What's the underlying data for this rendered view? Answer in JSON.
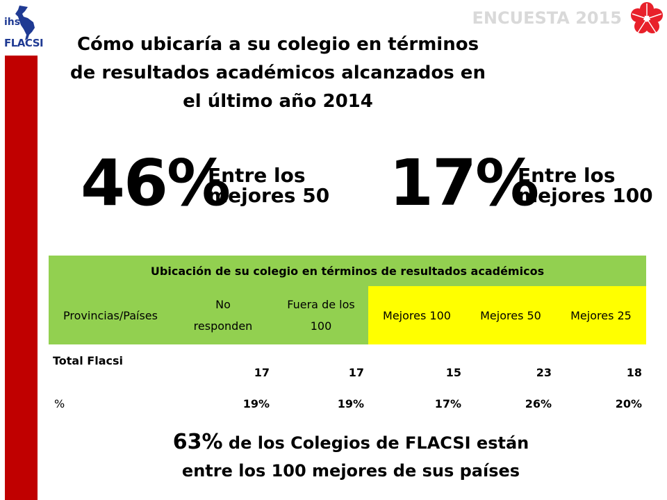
{
  "header": {
    "survey_label": "ENCUESTA 2015",
    "logo_top": "ihs",
    "logo_bottom": "FLACSI"
  },
  "title": {
    "line1": "Cómo ubicaría a su colegio en términos",
    "line2": "de resultados académicos alcanzados en",
    "line3": "el último año 2014"
  },
  "highlights": [
    {
      "value": "46%",
      "label_line1": "Entre los",
      "label_line2": "mejores 50"
    },
    {
      "value": "17%",
      "label_line1": "Entre los",
      "label_line2": "mejores 100"
    }
  ],
  "table": {
    "caption": "Ubicación de su colegio en términos de resultados académicos",
    "headers": [
      {
        "line1": "Provincias/Países",
        "line2": ""
      },
      {
        "line1": "No",
        "line2": "responden"
      },
      {
        "line1": "Fuera de los",
        "line2": "100"
      },
      {
        "line1": "Mejores 100",
        "line2": ""
      },
      {
        "line1": "Mejores 50",
        "line2": ""
      },
      {
        "line1": "Mejores 25",
        "line2": ""
      }
    ],
    "rows": [
      {
        "label": "Total Flacsi",
        "values": [
          "17",
          "17",
          "15",
          "23",
          "18"
        ]
      },
      {
        "label": "%",
        "values": [
          "19%",
          "19%",
          "17%",
          "26%",
          "20%"
        ]
      }
    ]
  },
  "footer": {
    "pct": "63%",
    "text_line1": " de los Colegios de FLACSI están",
    "text_line2": "entre los 100 mejores de sus países"
  },
  "colors": {
    "accent_red": "#c00000",
    "table_green": "#92d050",
    "table_yellow": "#ffff00",
    "logo_blue": "#1f3a93"
  }
}
